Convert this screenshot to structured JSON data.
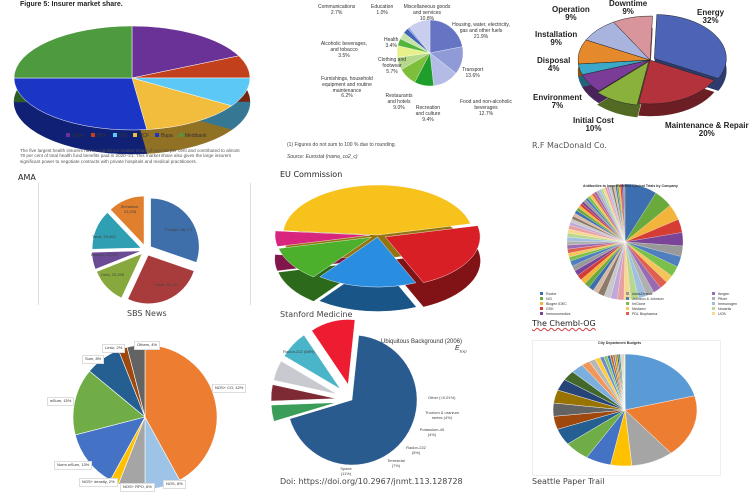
{
  "chart_data": [
    {
      "id": "ama",
      "type": "pie",
      "title": "Figure 5: Insurer market share.",
      "categories": [
        "Other",
        "HBF",
        "NIB",
        "HCF",
        "Bupa",
        "Medibank"
      ],
      "values": [
        18,
        7,
        9,
        14,
        27,
        25
      ],
      "colors": [
        "#6a3296",
        "#c2401c",
        "#5bc8f5",
        "#f2bd3c",
        "#1b36c4",
        "#4e9a3e"
      ],
      "caption_text": "The five largest health insurers have a combined market share of over 80 per cent and contributed to almost 78 per cent of total health fund benefits paid in 2020–21. This market share also gives the large insurers significant power to negotiate contracts with private hospitals and medical practitioners.",
      "source": "AMA",
      "three_d": true,
      "legend": "bottom"
    },
    {
      "id": "eu",
      "type": "pie",
      "categories": [
        "Housing, water, electricity, gas and other fuels",
        "Transport",
        "Food and non-alcoholic beverages",
        "Recreation and culture",
        "Restaurants and hotels",
        "Furnishings, household equipment and routine maintenance",
        "Clothing and footwear",
        "Alcoholic beverages, and tobacco",
        "Health",
        "Communications",
        "Education",
        "Miscellaneous goods and services"
      ],
      "values": [
        21.9,
        13.6,
        12.7,
        9.4,
        9.0,
        6.2,
        5.7,
        3.5,
        3.4,
        2.7,
        1.0,
        10.8
      ],
      "labels": [
        "21.9%",
        "13.6%",
        "12.7%",
        "9.4%",
        "9.0%",
        "6.2%",
        "5.7%",
        "3.5%",
        "3.4%",
        "2.7%",
        "1.0%",
        "10.8%"
      ],
      "colors": [
        "#6674c4",
        "#8f9ad6",
        "#b4bce6",
        "#1f9e2c",
        "#7dbf3a",
        "#b5d88a",
        "#e8f08c",
        "#53b53a",
        "#c6e2a8",
        "#3e63b8",
        "#8a98d8",
        "#c9cdee"
      ],
      "note": "(1) Figures do not sum to 100 % due to rounding.",
      "source_note": "Source: Eurostat (nama_co2_c)",
      "source": "EU Commission"
    },
    {
      "id": "rf",
      "type": "pie",
      "categories": [
        "Energy",
        "Maintenance & Repair",
        "Initial Cost",
        "Environment",
        "Disposal",
        "Installation",
        "Operation",
        "Downtime"
      ],
      "values": [
        32,
        20,
        10,
        7,
        4,
        9,
        9,
        9
      ],
      "labels": [
        "32%",
        "20%",
        "10%",
        "7%",
        "4%",
        "9%",
        "9%",
        "9%"
      ],
      "colors": [
        "#4c63b6",
        "#b3323c",
        "#8ab13c",
        "#7a3c96",
        "#3aa8c8",
        "#e58a2c",
        "#a9b4de",
        "#d9959c"
      ],
      "source": "R.F MacDonald Co.",
      "three_d": true
    },
    {
      "id": "sbs",
      "type": "pie",
      "categories": [
        "Punjabi",
        "Hindi",
        "Urdu",
        "Bangla",
        "Tamil",
        "Sinhalese"
      ],
      "values": [
        58171,
        51241,
        23205,
        10692,
        25662,
        23205
      ],
      "labels": [
        "Punjabi, 58,171",
        "Hindi, 51,241",
        "Urdu, 23,205",
        "Bangla, 10,692",
        "Tamil, 25,662",
        "Sinhalese, 23,205"
      ],
      "colors": [
        "#3e6faa",
        "#a83c3c",
        "#86a83c",
        "#6b4a96",
        "#2fa0b4",
        "#e07f2e"
      ],
      "source": "SBS News",
      "exploded": true
    },
    {
      "id": "stanford",
      "type": "pie",
      "values": [
        45,
        22,
        17,
        11,
        5
      ],
      "colors": [
        "#f7c21b",
        "#d81f26",
        "#2a8ee0",
        "#4cb02c",
        "#d8257e"
      ],
      "source": "Stanford Medicine",
      "three_d": true
    },
    {
      "id": "chembl",
      "type": "pie",
      "title": "Antibodies to have Reached Clinical Trials by Company",
      "legend_entries": [
        "Roche",
        "NCI",
        "Biogen IDEC",
        "GSK",
        "Immunomedics",
        "AstraZeneca",
        "Johnson & Johnson",
        "ImClone",
        "Medarex",
        "PDL Biopharma",
        "Amgen",
        "Pfizer",
        "Immunogen",
        "Novartis",
        "UCB"
      ],
      "values": [
        12,
        7,
        6,
        5,
        5,
        4,
        4,
        4,
        3,
        3,
        3,
        3,
        3,
        3,
        2.5,
        2.5,
        2.5,
        2.5,
        2.5,
        2,
        2,
        2,
        2,
        2,
        2,
        2,
        2,
        1.5,
        1.5,
        1.5,
        1.5,
        1.5,
        1.5,
        1.5,
        1.5,
        1.5,
        1.2,
        1.2,
        1.2,
        1.2,
        1.2,
        1.2,
        1,
        1,
        1,
        1,
        1,
        1,
        1,
        1,
        1,
        1,
        0.8,
        0.8,
        0.8,
        0.8,
        0.8,
        0.8,
        0.8,
        0.8,
        0.6,
        0.6,
        0.6,
        0.6,
        0.6,
        0.6
      ],
      "colors": [
        "#3d6fb0",
        "#6aaa3c",
        "#f2b43a",
        "#d43c34",
        "#7a4598",
        "#999999",
        "#4f7fbf",
        "#7bc04a",
        "#f5c45a",
        "#e06050",
        "#9a6ab4",
        "#b0b0b0",
        "#a0c0e0",
        "#b8d890",
        "#f8d890",
        "#e8a0a0",
        "#c0a8d8",
        "#c8c8c8",
        "#8c7a6a",
        "#d8b8a0"
      ],
      "source": "The Chembl-OG",
      "legend": "bottom"
    },
    {
      "id": "methods",
      "type": "pie",
      "categories": [
        "NOS+ CO",
        "NOS",
        "NOS+ RPO",
        "NOS+ density",
        "Norm wSum",
        "wSum",
        "Sum",
        "Lexic",
        "Others"
      ],
      "values": [
        42,
        8,
        6,
        2,
        13,
        15,
        8,
        2,
        4
      ],
      "labels": [
        "NOS+ CO, 42%",
        "NOS, 8%",
        "NOS+ RPO, 6%",
        "NOS+ density, 2%",
        "Norm wSum, 13%",
        "wSum, 15%",
        "Sum, 8%",
        "Lexic, 2%",
        "Others, 4%"
      ],
      "colors": [
        "#ed7d31",
        "#9dc3e6",
        "#a5a5a5",
        "#ffc000",
        "#4472c4",
        "#70ad47",
        "#255e91",
        "#9e480e",
        "#636363"
      ]
    },
    {
      "id": "radiation",
      "type": "pie",
      "title": "Ubiquitous Background (2006)",
      "subtitle": "E",
      "subtitle_sub": "Exp",
      "categories": [
        "Radon-222",
        "Other",
        "Thorium & uranium series",
        "Potassium-40",
        "Radon-222",
        "Terrestrial",
        "Space"
      ],
      "values": [
        68,
        0.01,
        4,
        4,
        5,
        7,
        11
      ],
      "labels": [
        "Radon-222 (68%)",
        "Other (<0.01%)",
        "Thorium & uranium series (4%)",
        "Potassium-40 (4%)",
        "Radon-222 (5%)",
        "Terrestrial (7%)",
        "Space (11%)"
      ],
      "colors": [
        "#2a5b8e",
        "#888888",
        "#3a9e5a",
        "#7e2a34",
        "#c8cad0",
        "#4ab4c8",
        "#ee1c30"
      ],
      "source": "Doi: https://doi.org/10.2967/jnmt.113.128728",
      "exploded": true
    },
    {
      "id": "seattle",
      "type": "pie",
      "title": "City Department Budgets",
      "values": [
        22,
        19,
        10,
        5,
        6,
        6,
        5,
        4,
        4,
        4,
        3.5,
        3,
        3,
        2,
        1.5,
        1.2,
        1,
        0.8,
        0.7,
        0.6,
        0.5,
        0.5,
        0.4,
        0.4,
        0.3,
        0.3,
        0.3,
        0.2
      ],
      "colors": [
        "#5b9bd5",
        "#ed7d31",
        "#a5a5a5",
        "#ffc000",
        "#4472c4",
        "#70ad47",
        "#255e91",
        "#9e480e",
        "#636363",
        "#997300",
        "#264478",
        "#43682b",
        "#7cafdd",
        "#f1975a",
        "#b7b7b7",
        "#ffcd33",
        "#698ed0",
        "#8cc168",
        "#327dc2",
        "#d26012",
        "#848484",
        "#cc9a00",
        "#335aa1",
        "#5a8a39",
        "#9dc3e6",
        "#f4b183",
        "#c9c9c9",
        "#ffd966"
      ],
      "source": "Seattle Paper Trail"
    }
  ]
}
